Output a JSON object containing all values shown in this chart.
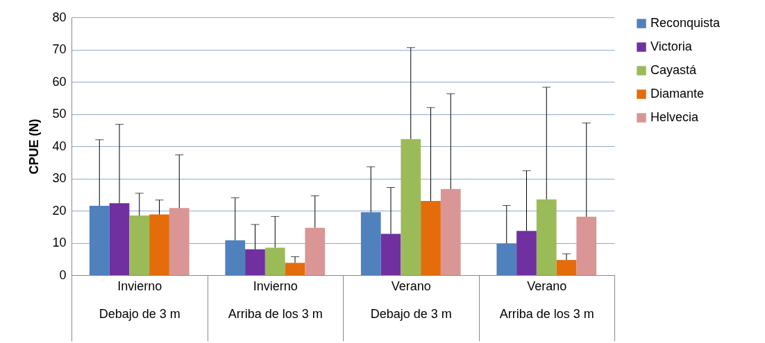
{
  "chart_data": {
    "type": "bar",
    "ylabel": "CPUE (N)",
    "categories": [
      "Invierno\nDebajo de 3 m",
      "Invierno\nArriba de los 3 m",
      "Verano\nDebajo de 3 m",
      "Verano\nArriba de los 3 m"
    ],
    "series": [
      {
        "name": "Reconquista",
        "color": "#4f81bd",
        "values": [
          21.5,
          10.8,
          19.5,
          9.8
        ],
        "errors": [
          [
            21.5,
            42
          ],
          [
            10.8,
            24
          ],
          [
            19.5,
            33.6
          ],
          [
            9.8,
            21.6
          ]
        ]
      },
      {
        "name": "Victoria",
        "color": "#7030a0",
        "values": [
          22.3,
          8,
          12.8,
          13.7
        ],
        "errors": [
          [
            22.3,
            46.8
          ],
          [
            8,
            15.7
          ],
          [
            12.8,
            27.2
          ],
          [
            13.7,
            32.4
          ]
        ]
      },
      {
        "name": "Cayastá",
        "color": "#9bbb59",
        "values": [
          18.5,
          8.5,
          42.2,
          23.5
        ],
        "errors": [
          [
            18.5,
            25.4
          ],
          [
            8.5,
            18.2
          ],
          [
            42.2,
            70.6
          ],
          [
            23.5,
            58.3
          ]
        ]
      },
      {
        "name": "Diamante",
        "color": "#e46c0a",
        "values": [
          18.8,
          3.8,
          23,
          4.7
        ],
        "errors": [
          [
            18.8,
            23.3
          ],
          [
            3.8,
            5.7
          ],
          [
            23,
            52
          ],
          [
            4.7,
            6.6
          ]
        ]
      },
      {
        "name": "Helvecia",
        "color": "#d99694",
        "values": [
          20.8,
          14.7,
          26.7,
          18.1
        ],
        "errors": [
          [
            20.8,
            37.3
          ],
          [
            14.7,
            24.6
          ],
          [
            26.7,
            56.3
          ],
          [
            18.1,
            47.2
          ]
        ]
      }
    ],
    "ylim": [
      0,
      80
    ],
    "yticks": [
      0,
      10,
      20,
      30,
      40,
      50,
      60,
      70,
      80
    ],
    "grid": "y",
    "legend": "right"
  }
}
